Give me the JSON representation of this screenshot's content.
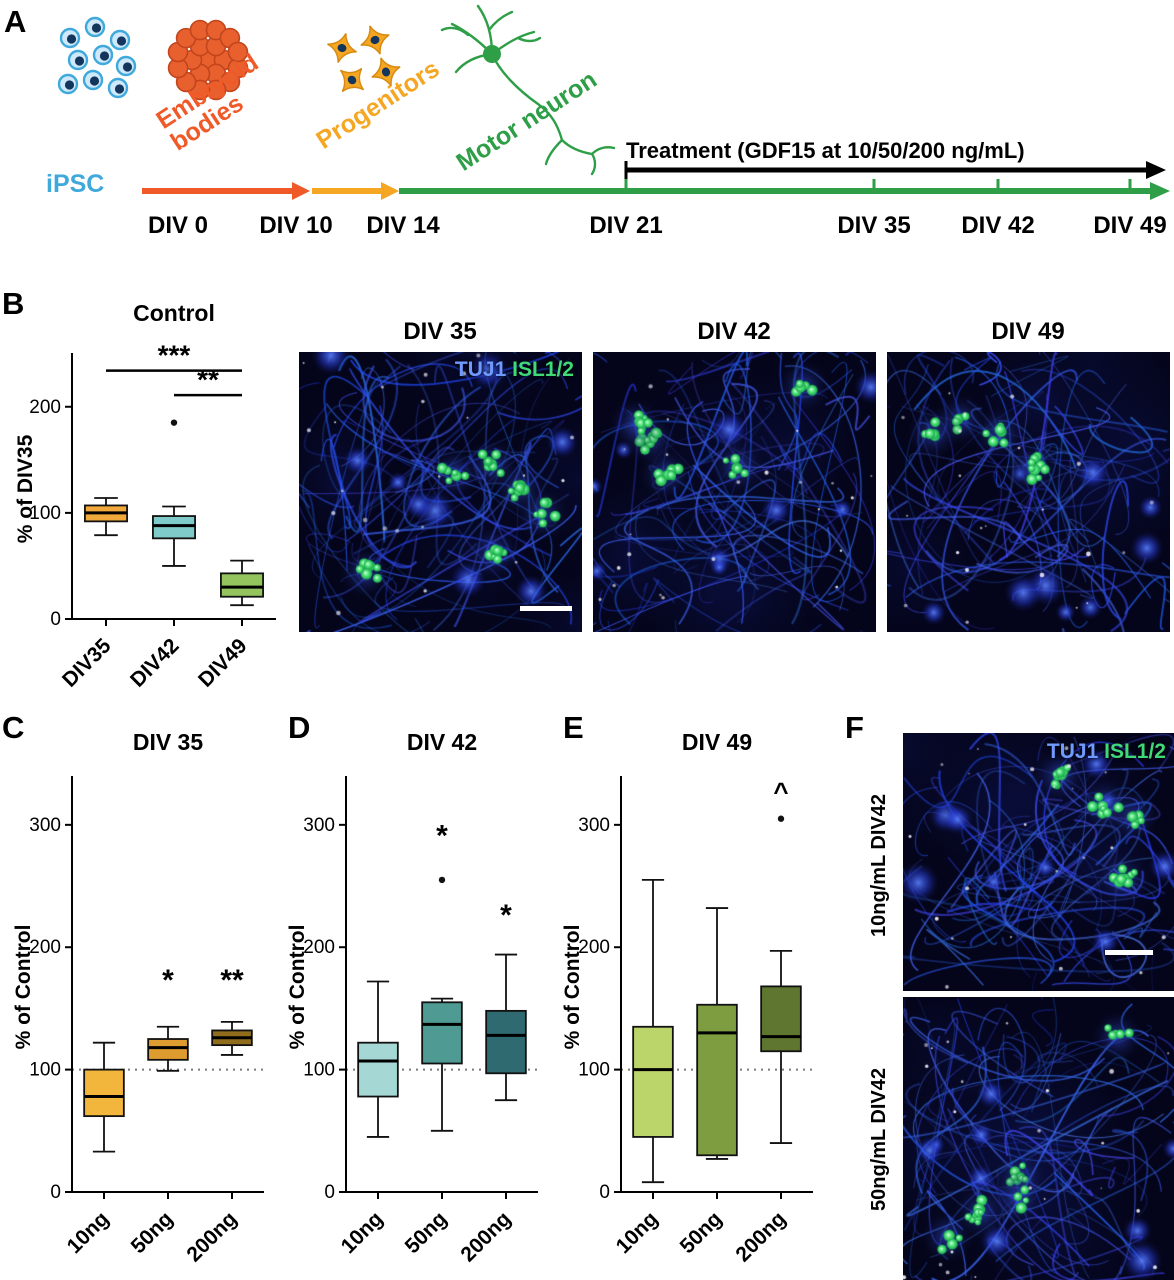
{
  "colors": {
    "ipsc_blue": "#3FA9DC",
    "embryoid_orange": "#F05A28",
    "progenitor_amber": "#F5A623",
    "motor_neuron_green": "#2E9E47",
    "treatment_black": "#000000",
    "tuj1_blue": "#6F9BFF",
    "isl_green": "#3FD977"
  },
  "panels": {
    "a": {
      "label": "A",
      "ipsc_label": "iPSC",
      "stages": {
        "embryoid": "Embryoid bodies",
        "progenitors": "Progenitors",
        "motor_neuron": "Motor neuron"
      },
      "treatment_label": "Treatment (GDF15 at 10/50/200 ng/mL)",
      "timeline": [
        "DIV 0",
        "DIV 10",
        "DIV 14",
        "DIV 21",
        "DIV 35",
        "DIV 42",
        "DIV 49"
      ]
    },
    "b": {
      "label": "B",
      "image_titles": [
        "DIV 35",
        "DIV 42",
        "DIV 49"
      ],
      "legend": {
        "tuj1": "TUJ1",
        "isl": "ISL1/2"
      }
    },
    "c": {
      "label": "C"
    },
    "d": {
      "label": "D"
    },
    "e": {
      "label": "E"
    },
    "f": {
      "label": "F",
      "legend": {
        "tuj1": "TUJ1",
        "isl": "ISL1/2"
      },
      "row_labels": [
        "10ng/mL DIV42",
        "50ng/mL DIV42"
      ]
    }
  },
  "chart_data": [
    {
      "type": "box",
      "id": "control",
      "title": "Control",
      "ylabel": "% of DIV35",
      "categories": [
        "DIV35",
        "DIV42",
        "DIV49"
      ],
      "ylim": [
        0,
        245
      ],
      "yticks": [
        0,
        100,
        200
      ],
      "boxes": [
        {
          "color": "#F2A93B",
          "lo": 79,
          "q1": 92,
          "median": 100,
          "q3": 107,
          "hi": 114,
          "outliers": []
        },
        {
          "color": "#7ECBC9",
          "lo": 50,
          "q1": 76,
          "median": 88,
          "q3": 97,
          "hi": 106,
          "outliers": [
            185
          ]
        },
        {
          "color": "#93C45E",
          "lo": 13,
          "q1": 21,
          "median": 30,
          "q3": 43,
          "hi": 55,
          "outliers": []
        }
      ],
      "sig_lines": [
        {
          "from": 0,
          "to": 2,
          "y": 234,
          "label": "***"
        },
        {
          "from": 1,
          "to": 2,
          "y": 211,
          "label": "**"
        }
      ]
    },
    {
      "type": "box",
      "id": "div35",
      "title": "DIV 35",
      "ylabel": "% of Control",
      "categories": [
        "10ng",
        "50ng",
        "200ng"
      ],
      "ylim": [
        0,
        335
      ],
      "yticks": [
        0,
        100,
        200,
        300
      ],
      "ref_line": 100,
      "boxes": [
        {
          "color": "#F3B63C",
          "lo": 33,
          "q1": 62,
          "median": 78,
          "q3": 100,
          "hi": 122,
          "outliers": []
        },
        {
          "color": "#DE9B2F",
          "lo": 99,
          "q1": 108,
          "median": 118,
          "q3": 125,
          "hi": 135,
          "outliers": []
        },
        {
          "color": "#8F6D1C",
          "lo": 112,
          "q1": 120,
          "median": 126,
          "q3": 132,
          "hi": 139,
          "outliers": []
        }
      ],
      "annotations": [
        {
          "cat": 1,
          "y": 165,
          "label": "*"
        },
        {
          "cat": 2,
          "y": 165,
          "label": "**"
        }
      ]
    },
    {
      "type": "box",
      "id": "div42",
      "title": "DIV 42",
      "ylabel": "% of Control",
      "categories": [
        "10ng",
        "50ng",
        "200ng"
      ],
      "ylim": [
        0,
        335
      ],
      "yticks": [
        0,
        100,
        200,
        300
      ],
      "ref_line": 100,
      "boxes": [
        {
          "color": "#A5D8D4",
          "lo": 45,
          "q1": 78,
          "median": 107,
          "q3": 122,
          "hi": 172,
          "outliers": []
        },
        {
          "color": "#4F9B94",
          "lo": 50,
          "q1": 105,
          "median": 137,
          "q3": 155,
          "hi": 158,
          "outliers": [
            255
          ]
        },
        {
          "color": "#2E6A70",
          "lo": 75,
          "q1": 97,
          "median": 128,
          "q3": 148,
          "hi": 194,
          "outliers": []
        }
      ],
      "annotations": [
        {
          "cat": 1,
          "y": 283,
          "label": "*"
        },
        {
          "cat": 2,
          "y": 218,
          "label": "*"
        }
      ]
    },
    {
      "type": "box",
      "id": "div49",
      "title": "DIV 49",
      "ylabel": "% of Control",
      "categories": [
        "10ng",
        "50ng",
        "200ng"
      ],
      "ylim": [
        0,
        335
      ],
      "yticks": [
        0,
        100,
        200,
        300
      ],
      "ref_line": 100,
      "boxes": [
        {
          "color": "#BCD56A",
          "lo": 8,
          "q1": 45,
          "median": 100,
          "q3": 135,
          "hi": 255,
          "outliers": []
        },
        {
          "color": "#7E9C40",
          "lo": 27,
          "q1": 30,
          "median": 130,
          "q3": 153,
          "hi": 232,
          "outliers": []
        },
        {
          "color": "#5E762F",
          "lo": 40,
          "q1": 115,
          "median": 127,
          "q3": 168,
          "hi": 197,
          "outliers": [
            305
          ]
        }
      ],
      "annotations": [
        {
          "cat": 2,
          "y": 320,
          "label": "^"
        }
      ]
    }
  ]
}
